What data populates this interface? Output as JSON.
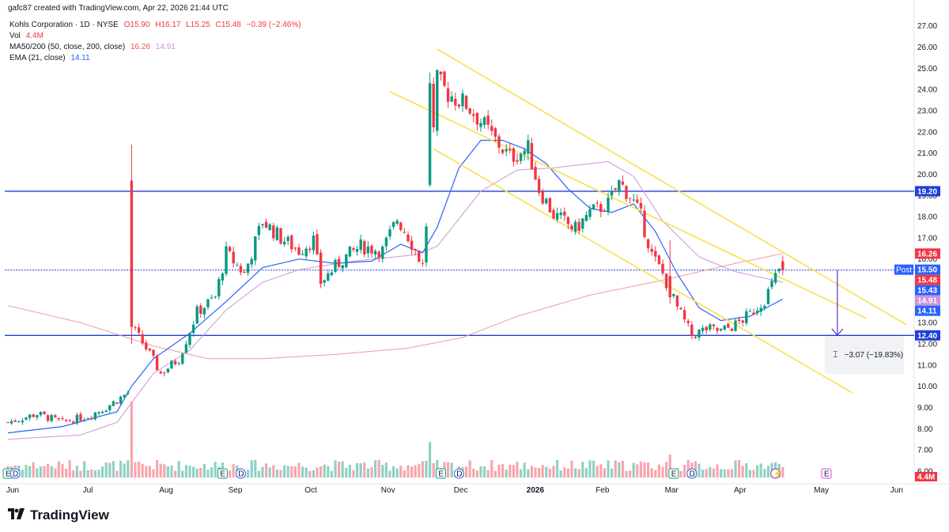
{
  "header": {
    "text": "gafc87 created with TradingView.com, Apr 22, 2026 21:44 UTC"
  },
  "legend": {
    "symbol": "Kohls Corporation · 1D · NYSE",
    "ohlc": {
      "o": "O15.90",
      "h": "H16.17",
      "l": "L15.25",
      "c": "C15.48",
      "chg": "−0.39 (−2.46%)"
    },
    "vol_label": "Vol",
    "vol_value": "4.4M",
    "ma_label": "MA50/200 (50, close, 200, close)",
    "ma_v1": "16.26",
    "ma_v2": "14.91",
    "ema_label": "EMA (21, close)",
    "ema_value": "14.11"
  },
  "brand": {
    "name": "TradingView"
  },
  "measure": {
    "text": "−3.07 (−19.83%)"
  },
  "colors": {
    "up": "#089981",
    "down": "#f23645",
    "volUp": "#8fd1c4",
    "volDown": "#f7a6ad",
    "ema": "#2962ff",
    "ma50": "#ce93d8",
    "ma200": "#ef9a9a",
    "channel": "#f7e04b",
    "hline": "#1e3fd8",
    "arrow": "#5b2bd1"
  },
  "chart_data": {
    "type": "candlestick",
    "y_axis_ticks": [
      "6.00",
      "7.00",
      "8.00",
      "9.00",
      "10.00",
      "11.00",
      "12.00",
      "13.00",
      "14.00",
      "15.00",
      "16.00",
      "17.00",
      "18.00",
      "19.00",
      "20.00",
      "21.00",
      "22.00",
      "23.00",
      "24.00",
      "25.00",
      "26.00",
      "27.00"
    ],
    "x_axis_labels": [
      "Jun",
      "Jul",
      "Aug",
      "Sep",
      "Oct",
      "Nov",
      "Dec",
      "2026",
      "Feb",
      "Mar",
      "Apr",
      "May",
      "Jun"
    ],
    "ylim": [
      5.4,
      27.4
    ],
    "horizontal_lines": [
      19.2,
      15.48,
      12.4
    ],
    "price_badges": [
      {
        "label": "19.20",
        "value": 19.2,
        "color": "#1e3fd8"
      },
      {
        "label": "16.26",
        "value": 16.26,
        "color": "#f23645"
      },
      {
        "label": "15.50",
        "value": 15.5,
        "color": "#2962ff",
        "tag": "Post"
      },
      {
        "label": "15.48",
        "value": 15.48,
        "color": "#f23645"
      },
      {
        "label": "15.43",
        "value": 15.43,
        "color": "#2962ff"
      },
      {
        "label": "14.91",
        "value": 14.91,
        "color": "#ce93d8"
      },
      {
        "label": "14.11",
        "value": 14.11,
        "color": "#2962ff"
      },
      {
        "label": "12.40",
        "value": 12.4,
        "color": "#1e3fd8"
      }
    ],
    "volume_badge": "4.4M",
    "events": [
      {
        "t": "E",
        "x": 0
      },
      {
        "t": "D",
        "x": 2
      },
      {
        "t": "E",
        "x": 59
      },
      {
        "t": "D",
        "x": 64
      },
      {
        "t": "E",
        "x": 119
      },
      {
        "t": "D",
        "x": 124
      },
      {
        "t": "E",
        "x": 183
      },
      {
        "t": "D",
        "x": 188
      },
      {
        "t": "⚡",
        "x": 211
      },
      {
        "t": "E",
        "x": 225
      }
    ],
    "anchors": [
      [
        0,
        8.3
      ],
      [
        8,
        8.7
      ],
      [
        15,
        8.3
      ],
      [
        22,
        8.6
      ],
      [
        27,
        9.0
      ],
      [
        33,
        9.7
      ],
      [
        34,
        12.8
      ],
      [
        38,
        11.8
      ],
      [
        42,
        10.6
      ],
      [
        47,
        11.3
      ],
      [
        52,
        13.5
      ],
      [
        57,
        14.2
      ],
      [
        60,
        16.3
      ],
      [
        65,
        15.3
      ],
      [
        70,
        17.8
      ],
      [
        75,
        17.0
      ],
      [
        80,
        16.4
      ],
      [
        84,
        16.9
      ],
      [
        86,
        14.9
      ],
      [
        92,
        16.0
      ],
      [
        97,
        16.6
      ],
      [
        103,
        16.4
      ],
      [
        107,
        17.9
      ],
      [
        110,
        17.1
      ],
      [
        114,
        15.7
      ],
      [
        116,
        19.6
      ],
      [
        118,
        24.4
      ],
      [
        121,
        23.8
      ],
      [
        126,
        23.3
      ],
      [
        130,
        22.5
      ],
      [
        134,
        21.6
      ],
      [
        138,
        20.8
      ],
      [
        143,
        21.2
      ],
      [
        146,
        19.3
      ],
      [
        150,
        18.1
      ],
      [
        156,
        17.4
      ],
      [
        160,
        18.2
      ],
      [
        165,
        18.6
      ],
      [
        168,
        19.6
      ],
      [
        171,
        19.0
      ],
      [
        174,
        18.0
      ],
      [
        177,
        16.2
      ],
      [
        180,
        15.3
      ],
      [
        184,
        13.7
      ],
      [
        188,
        12.4
      ],
      [
        192,
        12.7
      ],
      [
        196,
        12.6
      ],
      [
        200,
        12.9
      ],
      [
        204,
        13.4
      ],
      [
        208,
        14.1
      ],
      [
        212,
        15.5
      ],
      [
        213,
        15.48
      ]
    ],
    "spikes": [
      {
        "x": 34,
        "o": 19.7,
        "c": 12.8,
        "h": 21.4,
        "l": 12.0,
        "vol": 3.0
      },
      {
        "x": 116,
        "o": 19.5,
        "c": 24.3,
        "h": 24.8,
        "l": 19.4,
        "vol": 1.4
      },
      {
        "x": 182,
        "o": 15.2,
        "c": 14.2,
        "h": 16.9,
        "l": 13.9,
        "vol": 0.9
      }
    ],
    "moving_averages": {
      "ema21": [
        [
          0,
          7.8
        ],
        [
          15,
          8.1
        ],
        [
          30,
          8.8
        ],
        [
          34,
          10.0
        ],
        [
          40,
          11.3
        ],
        [
          50,
          12.5
        ],
        [
          60,
          14.0
        ],
        [
          70,
          15.6
        ],
        [
          80,
          16.0
        ],
        [
          90,
          15.8
        ],
        [
          100,
          15.9
        ],
        [
          108,
          16.7
        ],
        [
          114,
          16.3
        ],
        [
          118,
          17.5
        ],
        [
          124,
          20.3
        ],
        [
          130,
          21.6
        ],
        [
          136,
          21.6
        ],
        [
          142,
          21.2
        ],
        [
          148,
          20.5
        ],
        [
          154,
          19.3
        ],
        [
          160,
          18.4
        ],
        [
          166,
          18.2
        ],
        [
          172,
          18.6
        ],
        [
          178,
          17.3
        ],
        [
          184,
          15.3
        ],
        [
          190,
          13.7
        ],
        [
          196,
          13.1
        ],
        [
          204,
          13.3
        ],
        [
          213,
          14.11
        ]
      ],
      "ma50": [
        [
          0,
          7.5
        ],
        [
          20,
          7.7
        ],
        [
          30,
          8.3
        ],
        [
          40,
          10.6
        ],
        [
          50,
          11.7
        ],
        [
          60,
          13.6
        ],
        [
          70,
          14.9
        ],
        [
          80,
          15.5
        ],
        [
          95,
          15.9
        ],
        [
          112,
          16.2
        ],
        [
          118,
          16.6
        ],
        [
          130,
          19.2
        ],
        [
          140,
          20.2
        ],
        [
          150,
          20.3
        ],
        [
          160,
          20.5
        ],
        [
          165,
          20.6
        ],
        [
          172,
          19.9
        ],
        [
          180,
          17.8
        ],
        [
          190,
          16.1
        ],
        [
          200,
          15.4
        ],
        [
          213,
          14.91
        ]
      ],
      "ma200": [
        [
          0,
          13.8
        ],
        [
          20,
          13.0
        ],
        [
          40,
          11.9
        ],
        [
          55,
          11.3
        ],
        [
          70,
          11.3
        ],
        [
          90,
          11.5
        ],
        [
          110,
          11.8
        ],
        [
          125,
          12.3
        ],
        [
          140,
          13.3
        ],
        [
          160,
          14.3
        ],
        [
          180,
          15.0
        ],
        [
          200,
          15.8
        ],
        [
          213,
          16.26
        ]
      ]
    },
    "channel_lines": [
      {
        "p1": [
          105,
          23.9
        ],
        "p2": [
          236,
          13.2
        ]
      },
      {
        "p1": [
          118,
          25.9
        ],
        "p2": [
          247,
          12.9
        ]
      },
      {
        "p1": [
          117,
          21.2
        ],
        "p2": [
          232,
          9.7
        ]
      }
    ],
    "measure_arrow": {
      "x": 228,
      "from": 15.48,
      "to": 12.41
    }
  }
}
